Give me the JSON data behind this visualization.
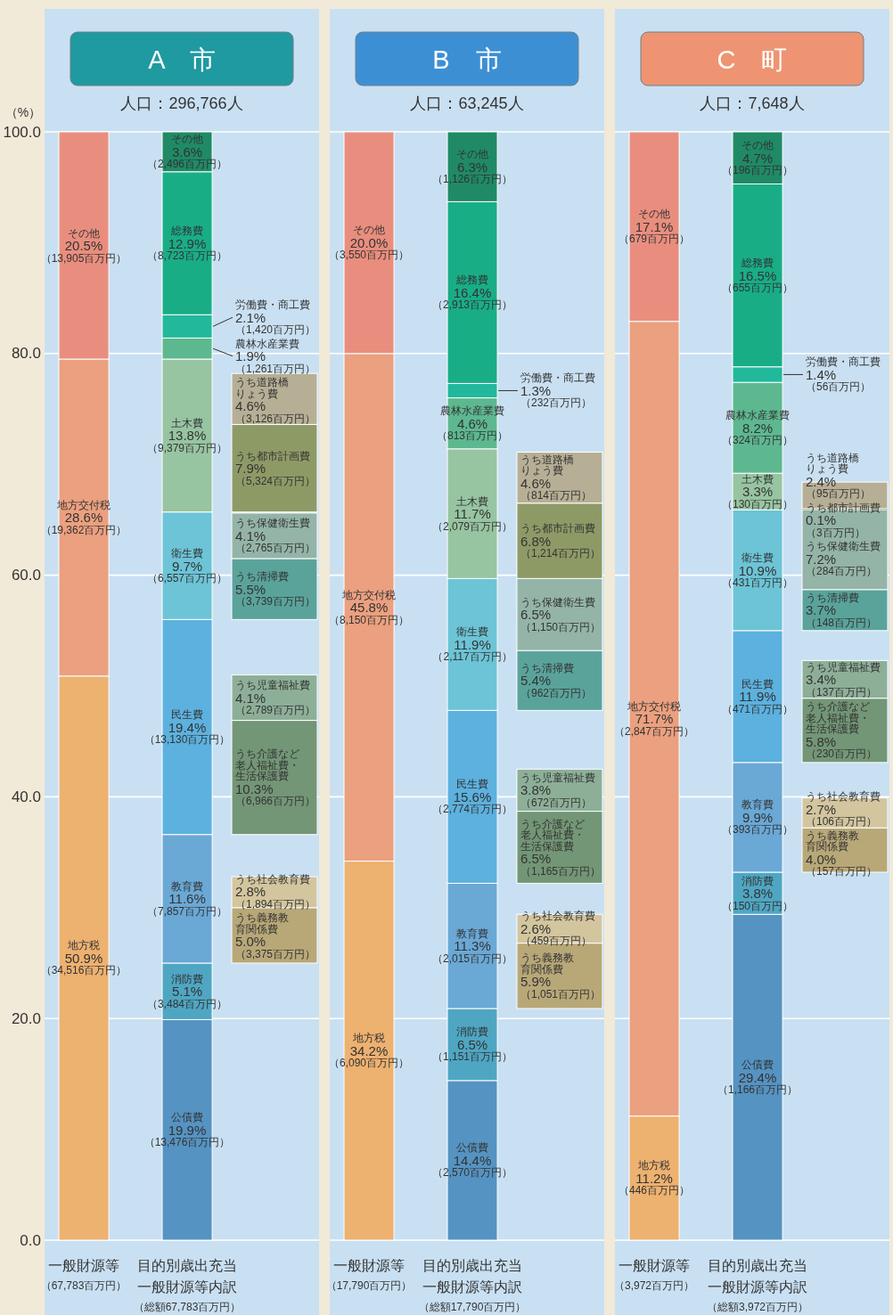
{
  "chart_data": [
    {
      "type": "bar",
      "title": "A　市",
      "subtitle": "人口：296,766人",
      "ylabel": "（%）",
      "grid": "y",
      "categories": [
        "一般財源等（67,783百万円）",
        "目的別歳出充当一般財源等内訳（総額67,783百万円）",
        null
      ],
      "ylim": [
        0,
        100
      ],
      "yticks": [
        {
          "value": 0,
          "label": "0.0"
        },
        {
          "value": 20,
          "label": "20.0"
        },
        {
          "value": 40,
          "label": "40.0"
        },
        {
          "value": 60,
          "label": "60.0"
        },
        {
          "value": 80,
          "label": "80.0"
        },
        {
          "value": 100,
          "label": "100.0"
        }
      ],
      "series": [
        {
          "name": "地方税",
          "color": "#edb170",
          "values": [
            50.9,
            null,
            null
          ],
          "base": [
            0,
            null,
            null
          ],
          "value_labels": [
            "50.9%\n（34,516百万円）",
            null,
            null
          ]
        },
        {
          "name": "地方交付税",
          "color": "#eba07f",
          "values": [
            28.6,
            null,
            null
          ],
          "base": [
            50.9,
            null,
            null
          ],
          "value_labels": [
            "28.6%\n（19,362百万円）",
            null,
            null
          ]
        },
        {
          "name": "その他",
          "color": "#e98e7e",
          "values": [
            20.5,
            null,
            null
          ],
          "base": [
            79.5,
            null,
            null
          ],
          "value_labels": [
            "20.5%\n（13,905百万円）",
            null,
            null
          ]
        },
        {
          "name": "公債費",
          "color": "#5593c2",
          "values": [
            null,
            19.9,
            null
          ],
          "base": [
            null,
            0,
            null
          ],
          "value_labels": [
            null,
            "19.9%\n（13,476百万円）",
            null
          ]
        },
        {
          "name": "消防費",
          "color": "#4fa6c3",
          "values": [
            null,
            5.1,
            null
          ],
          "base": [
            null,
            19.9,
            null
          ],
          "value_labels": [
            null,
            "5.1%\n（3,484百万円）",
            null
          ]
        },
        {
          "name": "教育費",
          "color": "#6aa8d5",
          "values": [
            null,
            11.6,
            null
          ],
          "base": [
            null,
            25.0,
            null
          ],
          "value_labels": [
            null,
            "11.6%\n（7,857百万円）",
            null
          ]
        },
        {
          "name": "民生費",
          "color": "#5cb1de",
          "values": [
            null,
            19.4,
            null
          ],
          "base": [
            null,
            36.6,
            null
          ],
          "value_labels": [
            null,
            "19.4%\n（13,130百万円）",
            null
          ]
        },
        {
          "name": "衛生費",
          "color": "#6cc4d6",
          "values": [
            null,
            9.7,
            null
          ],
          "base": [
            null,
            56.0,
            null
          ],
          "value_labels": [
            null,
            "9.7%\n（6,557百万円）",
            null
          ]
        },
        {
          "name": "土木費",
          "color": "#97c4a1",
          "values": [
            null,
            13.8,
            null
          ],
          "base": [
            null,
            65.7,
            null
          ],
          "value_labels": [
            null,
            "13.8%\n（9,379百万円）",
            null
          ]
        },
        {
          "name": "農林水産業費",
          "color": "#5db890",
          "values": [
            null,
            1.9,
            null
          ],
          "base": [
            null,
            79.5,
            null
          ],
          "value_labels": [
            null,
            "1.9%\n（1,261百万円）",
            null
          ]
        },
        {
          "name": "労働費・商工費",
          "color": "#22b89c",
          "values": [
            null,
            2.1,
            null
          ],
          "base": [
            null,
            81.4,
            null
          ],
          "value_labels": [
            null,
            "2.1%\n（1,420百万円）",
            null
          ]
        },
        {
          "name": "総務費",
          "color": "#19ad86",
          "values": [
            null,
            12.9,
            null
          ],
          "base": [
            null,
            83.5,
            null
          ],
          "value_labels": [
            null,
            "12.9%\n（8,723百万円）",
            null
          ]
        },
        {
          "name": "その他",
          "color": "#1f8a65",
          "values": [
            null,
            3.6,
            null
          ],
          "base": [
            null,
            96.4,
            null
          ],
          "value_labels": [
            null,
            "3.6%\n（2,496百万円）",
            null
          ]
        },
        {
          "name": "うち義務教育関係費",
          "color": "#b8a878",
          "values": [
            null,
            null,
            5.0
          ],
          "base": [
            null,
            null,
            25.0
          ],
          "value_labels": [
            null,
            null,
            "5.0%\n（3,375百万円）"
          ]
        },
        {
          "name": "うち社会教育費",
          "color": "#d3c59e",
          "values": [
            null,
            null,
            2.8
          ],
          "base": [
            null,
            null,
            30.0
          ],
          "value_labels": [
            null,
            null,
            "2.8%\n（1,894百万円）"
          ]
        },
        {
          "name": "うち介護など老人福祉費・生活保護費",
          "color": "#739676",
          "values": [
            null,
            null,
            10.3
          ],
          "base": [
            null,
            null,
            36.6
          ],
          "value_labels": [
            null,
            null,
            "10.3%\n（6,966百万円）"
          ]
        },
        {
          "name": "うち児童福祉費",
          "color": "#8daf98",
          "values": [
            null,
            null,
            4.1
          ],
          "base": [
            null,
            null,
            46.9
          ],
          "value_labels": [
            null,
            null,
            "4.1%\n（2,789百万円）"
          ]
        },
        {
          "name": "うち清掃費",
          "color": "#5aa39b",
          "values": [
            null,
            null,
            5.5
          ],
          "base": [
            null,
            null,
            56.0
          ],
          "value_labels": [
            null,
            null,
            "5.5%\n（3,739百万円）"
          ]
        },
        {
          "name": "うち保健衛生費",
          "color": "#94b4a7",
          "values": [
            null,
            null,
            4.1
          ],
          "base": [
            null,
            null,
            61.5
          ],
          "value_labels": [
            null,
            null,
            "4.1%\n（2,765百万円）"
          ]
        },
        {
          "name": "うち都市計画費",
          "color": "#8e9a66",
          "values": [
            null,
            null,
            7.9
          ],
          "base": [
            null,
            null,
            65.7
          ],
          "value_labels": [
            null,
            null,
            "7.9%\n（5,324百万円）"
          ]
        },
        {
          "name": "うち道路橋りょう費",
          "color": "#b6af95",
          "values": [
            null,
            null,
            4.6
          ],
          "base": [
            null,
            null,
            73.6
          ],
          "value_labels": [
            null,
            null,
            "4.6%\n（3,126百万円）"
          ]
        }
      ]
    },
    {
      "type": "bar",
      "title": "B　市",
      "subtitle": "人口：63,245人",
      "grid": "y",
      "tick_labels": "x",
      "categories": [
        "一般財源等（17,790百万円）",
        "目的別歳出充当一般財源等内訳（総額17,790百万円）",
        null
      ],
      "ylim": [
        0,
        100
      ],
      "yticks": [
        0,
        20,
        40,
        60,
        80,
        100
      ],
      "series": [
        {
          "name": "地方税",
          "color": "#edb170",
          "values": [
            34.2,
            null,
            null
          ],
          "base": [
            0,
            null,
            null
          ],
          "value_labels": [
            "34.2%\n（6,090百万円）",
            null,
            null
          ]
        },
        {
          "name": "地方交付税",
          "color": "#eba07f",
          "values": [
            45.8,
            null,
            null
          ],
          "base": [
            34.2,
            null,
            null
          ],
          "value_labels": [
            "45.8%\n（8,150百万円）",
            null,
            null
          ]
        },
        {
          "name": "その他",
          "color": "#e98e7e",
          "values": [
            20.0,
            null,
            null
          ],
          "base": [
            80.0,
            null,
            null
          ],
          "value_labels": [
            "20.0%\n（3,550百万円）",
            null,
            null
          ]
        },
        {
          "name": "公債費",
          "color": "#5593c2",
          "values": [
            null,
            14.4,
            null
          ],
          "base": [
            null,
            0,
            null
          ],
          "value_labels": [
            null,
            "14.4%\n（2,570百万円）",
            null
          ]
        },
        {
          "name": "消防費",
          "color": "#4fa6c3",
          "values": [
            null,
            6.5,
            null
          ],
          "base": [
            null,
            14.4,
            null
          ],
          "value_labels": [
            null,
            "6.5%\n（1,151百万円）",
            null
          ]
        },
        {
          "name": "教育費",
          "color": "#6aa8d5",
          "values": [
            null,
            11.3,
            null
          ],
          "base": [
            null,
            20.9,
            null
          ],
          "value_labels": [
            null,
            "11.3%\n（2,015百万円）",
            null
          ]
        },
        {
          "name": "民生費",
          "color": "#5cb1de",
          "values": [
            null,
            15.6,
            null
          ],
          "base": [
            null,
            32.2,
            null
          ],
          "value_labels": [
            null,
            "15.6%\n（2,774百万円）",
            null
          ]
        },
        {
          "name": "衛生費",
          "color": "#6cc4d6",
          "values": [
            null,
            11.9,
            null
          ],
          "base": [
            null,
            47.8,
            null
          ],
          "value_labels": [
            null,
            "11.9%\n（2,117百万円）",
            null
          ]
        },
        {
          "name": "土木費",
          "color": "#97c4a1",
          "values": [
            null,
            11.7,
            null
          ],
          "base": [
            null,
            59.7,
            null
          ],
          "value_labels": [
            null,
            "11.7%\n（2,079百万円）",
            null
          ]
        },
        {
          "name": "農林水産業費",
          "color": "#5db890",
          "values": [
            null,
            4.6,
            null
          ],
          "base": [
            null,
            71.4,
            null
          ],
          "value_labels": [
            null,
            "4.6%\n（813百万円）",
            null
          ]
        },
        {
          "name": "労働費・商工費",
          "color": "#22b89c",
          "values": [
            null,
            1.3,
            null
          ],
          "base": [
            null,
            76.0,
            null
          ],
          "value_labels": [
            null,
            "1.3%\n（232百万円）",
            null
          ]
        },
        {
          "name": "総務費",
          "color": "#19ad86",
          "values": [
            null,
            16.4,
            null
          ],
          "base": [
            null,
            77.3,
            null
          ],
          "value_labels": [
            null,
            "16.4%\n（2,913百万円）",
            null
          ]
        },
        {
          "name": "その他",
          "color": "#1f8a65",
          "values": [
            null,
            6.3,
            null
          ],
          "base": [
            null,
            93.7,
            null
          ],
          "value_labels": [
            null,
            "6.3%\n（1,126百万円）",
            null
          ]
        },
        {
          "name": "うち義務教育関係費",
          "color": "#b8a878",
          "values": [
            null,
            null,
            5.9
          ],
          "base": [
            null,
            null,
            20.9
          ],
          "value_labels": [
            null,
            null,
            "5.9%\n（1,051百万円）"
          ]
        },
        {
          "name": "うち社会教育費",
          "color": "#d3c59e",
          "values": [
            null,
            null,
            2.6
          ],
          "base": [
            null,
            null,
            26.8
          ],
          "value_labels": [
            null,
            null,
            "2.6%\n（459百万円）"
          ]
        },
        {
          "name": "うち介護など老人福祉費・生活保護費",
          "color": "#739676",
          "values": [
            null,
            null,
            6.5
          ],
          "base": [
            null,
            null,
            32.2
          ],
          "value_labels": [
            null,
            null,
            "6.5%\n（1,165百万円）"
          ]
        },
        {
          "name": "うち児童福祉費",
          "color": "#8daf98",
          "values": [
            null,
            null,
            3.8
          ],
          "base": [
            null,
            null,
            38.7
          ],
          "value_labels": [
            null,
            null,
            "3.8%\n（672百万円）"
          ]
        },
        {
          "name": "うち清掃費",
          "color": "#5aa39b",
          "values": [
            null,
            null,
            5.4
          ],
          "base": [
            null,
            null,
            47.8
          ],
          "value_labels": [
            null,
            null,
            "5.4%\n（962百万円）"
          ]
        },
        {
          "name": "うち保健衛生費",
          "color": "#94b4a7",
          "values": [
            null,
            null,
            6.5
          ],
          "base": [
            null,
            null,
            53.2
          ],
          "value_labels": [
            null,
            null,
            "6.5%\n（1,150百万円）"
          ]
        },
        {
          "name": "うち都市計画費",
          "color": "#8e9a66",
          "values": [
            null,
            null,
            6.8
          ],
          "base": [
            null,
            null,
            59.7
          ],
          "value_labels": [
            null,
            null,
            "6.8%\n（1,214百万円）"
          ]
        },
        {
          "name": "うち道路橋りょう費",
          "color": "#b6af95",
          "values": [
            null,
            null,
            4.6
          ],
          "base": [
            null,
            null,
            66.5
          ],
          "value_labels": [
            null,
            null,
            "4.6%\n（814百万円）"
          ]
        }
      ]
    },
    {
      "type": "bar",
      "title": "C　町",
      "subtitle": "人口：7,648人",
      "grid": "y",
      "tick_labels": "x",
      "categories": [
        "一般財源等（3,972百万円）",
        "目的別歳出充当一般財源等内訳（総額3,972百万円）",
        null
      ],
      "ylim": [
        0,
        100
      ],
      "yticks": [
        0,
        20,
        40,
        60,
        80,
        100
      ],
      "series": [
        {
          "name": "地方税",
          "color": "#edb170",
          "values": [
            11.2,
            null,
            null
          ],
          "base": [
            0,
            null,
            null
          ],
          "value_labels": [
            "11.2%\n（446百万円）",
            null,
            null
          ]
        },
        {
          "name": "地方交付税",
          "color": "#eba07f",
          "values": [
            71.7,
            null,
            null
          ],
          "base": [
            11.2,
            null,
            null
          ],
          "value_labels": [
            "71.7%\n（2,847百万円）",
            null,
            null
          ]
        },
        {
          "name": "その他",
          "color": "#e98e7e",
          "values": [
            17.1,
            null,
            null
          ],
          "base": [
            82.9,
            null,
            null
          ],
          "value_labels": [
            "17.1%\n（679百万円）",
            null,
            null
          ]
        },
        {
          "name": "公債費",
          "color": "#5593c2",
          "values": [
            null,
            29.4,
            null
          ],
          "base": [
            null,
            0,
            null
          ],
          "value_labels": [
            null,
            "29.4%\n（1,166百万円）",
            null
          ]
        },
        {
          "name": "消防費",
          "color": "#4fa6c3",
          "values": [
            null,
            3.8,
            null
          ],
          "base": [
            null,
            29.4,
            null
          ],
          "value_labels": [
            null,
            "3.8%\n（150百万円）",
            null
          ]
        },
        {
          "name": "教育費",
          "color": "#6aa8d5",
          "values": [
            null,
            9.9,
            null
          ],
          "base": [
            null,
            33.2,
            null
          ],
          "value_labels": [
            null,
            "9.9%\n（393百万円）",
            null
          ]
        },
        {
          "name": "民生費",
          "color": "#5cb1de",
          "values": [
            null,
            11.9,
            null
          ],
          "base": [
            null,
            43.1,
            null
          ],
          "value_labels": [
            null,
            "11.9%\n（471百万円）",
            null
          ]
        },
        {
          "name": "衛生費",
          "color": "#6cc4d6",
          "values": [
            null,
            10.9,
            null
          ],
          "base": [
            null,
            55.0,
            null
          ],
          "value_labels": [
            null,
            "10.9%\n（431百万円）",
            null
          ]
        },
        {
          "name": "土木費",
          "color": "#97c4a1",
          "values": [
            null,
            3.3,
            null
          ],
          "base": [
            null,
            65.9,
            null
          ],
          "value_labels": [
            null,
            "3.3%\n（130百万円）",
            null
          ]
        },
        {
          "name": "農林水産業費",
          "color": "#5db890",
          "values": [
            null,
            8.2,
            null
          ],
          "base": [
            null,
            69.2,
            null
          ],
          "value_labels": [
            null,
            "8.2%\n（324百万円）",
            null
          ]
        },
        {
          "name": "労働費・商工費",
          "color": "#22b89c",
          "values": [
            null,
            1.4,
            null
          ],
          "base": [
            null,
            77.4,
            null
          ],
          "value_labels": [
            null,
            "1.4%\n（56百万円）",
            null
          ]
        },
        {
          "name": "総務費",
          "color": "#19ad86",
          "values": [
            null,
            16.5,
            null
          ],
          "base": [
            null,
            78.8,
            null
          ],
          "value_labels": [
            null,
            "16.5%\n（655百万円）",
            null
          ]
        },
        {
          "name": "その他",
          "color": "#1f8a65",
          "values": [
            null,
            4.7,
            null
          ],
          "base": [
            null,
            95.3,
            null
          ],
          "value_labels": [
            null,
            "4.7%\n（196百万円）",
            null
          ]
        },
        {
          "name": "うち義務教育関係費",
          "color": "#b8a878",
          "values": [
            null,
            null,
            4.0
          ],
          "base": [
            null,
            null,
            33.2
          ],
          "value_labels": [
            null,
            null,
            "4.0%\n（157百万円）"
          ]
        },
        {
          "name": "うち社会教育費",
          "color": "#d3c59e",
          "values": [
            null,
            null,
            2.7
          ],
          "base": [
            null,
            null,
            37.2
          ],
          "value_labels": [
            null,
            null,
            "2.7%\n（106百万円）"
          ]
        },
        {
          "name": "うち介護など老人福祉費・生活保護費",
          "color": "#739676",
          "values": [
            null,
            null,
            5.8
          ],
          "base": [
            null,
            null,
            43.1
          ],
          "value_labels": [
            null,
            null,
            "5.8%\n（230百万円）"
          ]
        },
        {
          "name": "うち児童福祉費",
          "color": "#8daf98",
          "values": [
            null,
            null,
            3.4
          ],
          "base": [
            null,
            null,
            48.9
          ],
          "value_labels": [
            null,
            null,
            "3.4%\n（137百万円）"
          ]
        },
        {
          "name": "うち清掃費",
          "color": "#5aa39b",
          "values": [
            null,
            null,
            3.7
          ],
          "base": [
            null,
            null,
            55.0
          ],
          "value_labels": [
            null,
            null,
            "3.7%\n（148百万円）"
          ]
        },
        {
          "name": "うち保健衛生費",
          "color": "#94b4a7",
          "values": [
            null,
            null,
            7.2
          ],
          "base": [
            null,
            null,
            58.7
          ],
          "value_labels": [
            null,
            null,
            "7.2%\n（284百万円）"
          ]
        },
        {
          "name": "うち都市計画費",
          "color": "#8e9a66",
          "values": [
            null,
            null,
            0.1
          ],
          "base": [
            null,
            null,
            65.9
          ],
          "value_labels": [
            null,
            null,
            "0.1%\n（3百万円）"
          ]
        },
        {
          "name": "うち道路橋りょう費",
          "color": "#b6af95",
          "values": [
            null,
            null,
            2.4
          ],
          "base": [
            null,
            null,
            66.0
          ],
          "value_labels": [
            null,
            null,
            "2.4%\n（95百万円）"
          ]
        }
      ]
    }
  ]
}
